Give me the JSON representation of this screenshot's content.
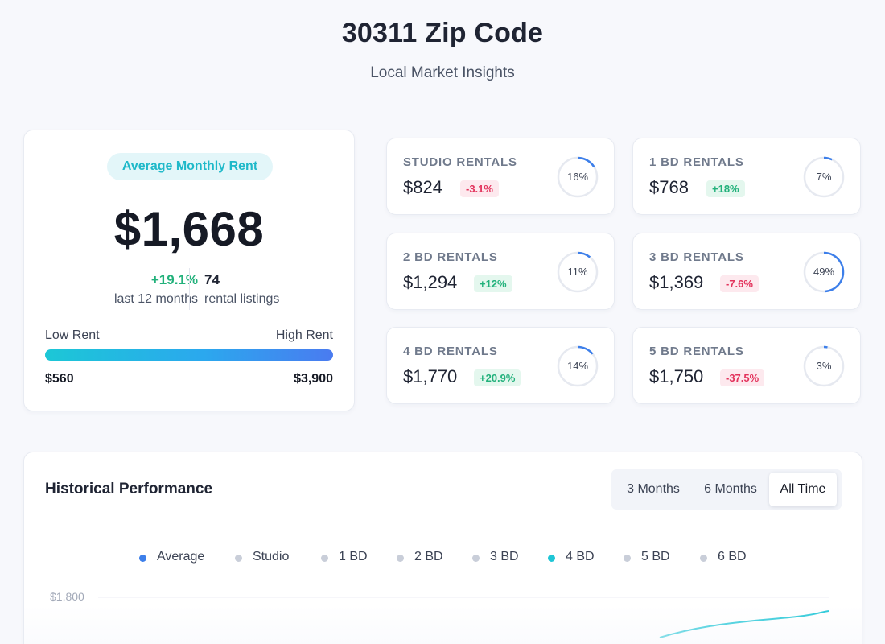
{
  "header": {
    "title": "30311 Zip Code",
    "subtitle": "Local Market Insights"
  },
  "average": {
    "pill": "Average Monthly Rent",
    "value": "$1,668",
    "change": "+19.1%",
    "change_label": "last 12 months",
    "listings": "74",
    "listings_label": "rental listings",
    "low_label": "Low Rent",
    "high_label": "High Rent",
    "low_value": "$560",
    "high_value": "$3,900"
  },
  "rentals": [
    {
      "label": "STUDIO RENTALS",
      "value": "$824",
      "change": "-3.1%",
      "direction": "neg",
      "share": "16%",
      "share_pct": 16
    },
    {
      "label": "1 BD RENTALS",
      "value": "$768",
      "change": "+18%",
      "direction": "pos",
      "share": "7%",
      "share_pct": 7
    },
    {
      "label": "2 BD RENTALS",
      "value": "$1,294",
      "change": "+12%",
      "direction": "pos",
      "share": "11%",
      "share_pct": 11
    },
    {
      "label": "3 BD RENTALS",
      "value": "$1,369",
      "change": "-7.6%",
      "direction": "neg",
      "share": "49%",
      "share_pct": 49
    },
    {
      "label": "4 BD RENTALS",
      "value": "$1,770",
      "change": "+20.9%",
      "direction": "pos",
      "share": "14%",
      "share_pct": 14
    },
    {
      "label": "5 BD RENTALS",
      "value": "$1,750",
      "change": "-37.5%",
      "direction": "neg",
      "share": "3%",
      "share_pct": 3
    }
  ],
  "history": {
    "title": "Historical Performance",
    "ranges": [
      "3 Months",
      "6 Months",
      "All Time"
    ],
    "active_range": "All Time",
    "legend": [
      {
        "label": "Average",
        "color": "#3d7fea"
      },
      {
        "label": "Studio",
        "color": "#c9ced9"
      },
      {
        "label": "1 BD",
        "color": "#c9ced9"
      },
      {
        "label": "2 BD",
        "color": "#c9ced9"
      },
      {
        "label": "3 BD",
        "color": "#c9ced9"
      },
      {
        "label": "4 BD",
        "color": "#1fc6d6"
      },
      {
        "label": "5 BD",
        "color": "#c9ced9"
      },
      {
        "label": "6 BD",
        "color": "#c9ced9"
      }
    ],
    "y_tick": "$1,800"
  },
  "colors": {
    "accent": "#3d7fea",
    "teal": "#1fc6d6",
    "positive": "#22b17b",
    "negative": "#e3335c"
  }
}
